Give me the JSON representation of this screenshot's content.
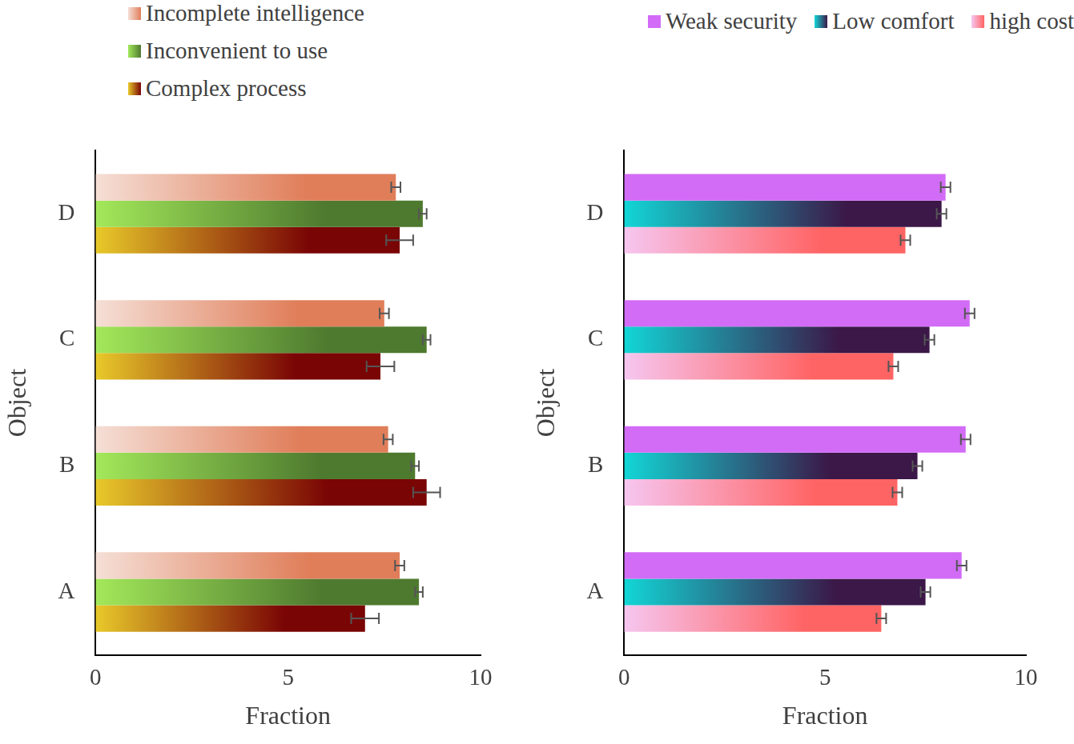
{
  "chart_data": [
    {
      "type": "bar",
      "orientation": "horizontal",
      "legend": "upper left",
      "grid": false,
      "xlabel": "Fraction",
      "ylabel": "Object",
      "categories": [
        "A",
        "B",
        "C",
        "D"
      ],
      "xlim": [
        0,
        10
      ],
      "xticks": [
        0,
        5,
        10
      ],
      "series": [
        {
          "name": "Incomplete intelligence",
          "color": "#e07e5a",
          "values": [
            7.9,
            7.6,
            7.5,
            7.8
          ],
          "errors": [
            0.12,
            0.12,
            0.12,
            0.12
          ]
        },
        {
          "name": "Inconvenient to use",
          "color": "#4e7a2f",
          "values": [
            8.4,
            8.3,
            8.6,
            8.5
          ],
          "errors": [
            0.1,
            0.1,
            0.1,
            0.1
          ]
        },
        {
          "name": "Complex process",
          "color": "#7a0505",
          "values": [
            7.0,
            8.6,
            7.4,
            7.9
          ],
          "errors": [
            0.36,
            0.35,
            0.36,
            0.35
          ]
        }
      ]
    },
    {
      "type": "bar",
      "orientation": "horizontal",
      "legend": "upper right",
      "grid": false,
      "xlabel": "Fraction",
      "ylabel": "Object",
      "categories": [
        "A",
        "B",
        "C",
        "D"
      ],
      "xlim": [
        0,
        10
      ],
      "xticks": [
        0,
        5,
        10
      ],
      "series": [
        {
          "name": "Weak security",
          "color": "#d26cf7",
          "values": [
            8.4,
            8.5,
            8.6,
            8.0
          ],
          "errors": [
            0.12,
            0.12,
            0.12,
            0.12
          ]
        },
        {
          "name": "Low comfort",
          "color": "#3b1848",
          "values": [
            7.5,
            7.3,
            7.6,
            7.9
          ],
          "errors": [
            0.12,
            0.12,
            0.12,
            0.12
          ]
        },
        {
          "name": "high cost",
          "color": "#ff6464",
          "values": [
            6.4,
            6.8,
            6.7,
            7.0
          ],
          "errors": [
            0.12,
            0.12,
            0.12,
            0.12
          ]
        }
      ]
    }
  ]
}
